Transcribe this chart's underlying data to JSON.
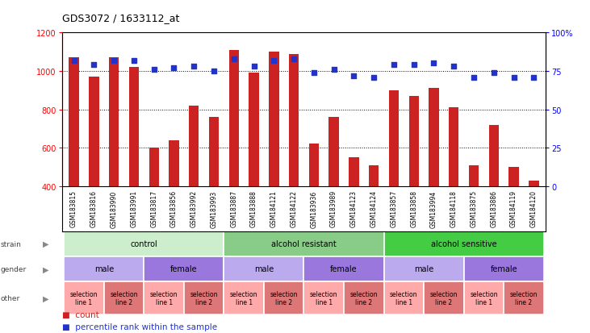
{
  "title": "GDS3072 / 1633112_at",
  "samples": [
    "GSM183815",
    "GSM183816",
    "GSM183990",
    "GSM183991",
    "GSM183817",
    "GSM183856",
    "GSM183992",
    "GSM183993",
    "GSM183887",
    "GSM183888",
    "GSM184121",
    "GSM184122",
    "GSM183936",
    "GSM183989",
    "GSM184123",
    "GSM184124",
    "GSM183857",
    "GSM183858",
    "GSM183994",
    "GSM184118",
    "GSM183875",
    "GSM183886",
    "GSM184119",
    "GSM184120"
  ],
  "counts": [
    1070,
    970,
    1070,
    1020,
    600,
    640,
    820,
    760,
    1110,
    990,
    1100,
    1090,
    620,
    760,
    550,
    510,
    900,
    870,
    910,
    810,
    510,
    720,
    500,
    430
  ],
  "percentiles": [
    82,
    79,
    82,
    82,
    76,
    77,
    78,
    75,
    83,
    78,
    82,
    83,
    74,
    76,
    72,
    71,
    79,
    79,
    80,
    78,
    71,
    74,
    71,
    71
  ],
  "bar_color": "#cc2222",
  "dot_color": "#2233cc",
  "ylim_left": [
    400,
    1200
  ],
  "ylim_right": [
    0,
    100
  ],
  "yticks_left": [
    400,
    600,
    800,
    1000,
    1200
  ],
  "yticks_right": [
    0,
    25,
    50,
    75,
    100
  ],
  "ytick_right_labels": [
    "0",
    "25",
    "50",
    "75",
    "100%"
  ],
  "grid_values": [
    600,
    800,
    1000
  ],
  "strain_groups": [
    {
      "label": "control",
      "start": 0,
      "end": 8,
      "color": "#cceecc"
    },
    {
      "label": "alcohol resistant",
      "start": 8,
      "end": 16,
      "color": "#88cc88"
    },
    {
      "label": "alcohol sensitive",
      "start": 16,
      "end": 24,
      "color": "#44cc44"
    }
  ],
  "gender_groups": [
    {
      "label": "male",
      "start": 0,
      "end": 4,
      "color": "#bbaaee"
    },
    {
      "label": "female",
      "start": 4,
      "end": 8,
      "color": "#9977dd"
    },
    {
      "label": "male",
      "start": 8,
      "end": 12,
      "color": "#bbaaee"
    },
    {
      "label": "female",
      "start": 12,
      "end": 16,
      "color": "#9977dd"
    },
    {
      "label": "male",
      "start": 16,
      "end": 20,
      "color": "#bbaaee"
    },
    {
      "label": "female",
      "start": 20,
      "end": 24,
      "color": "#9977dd"
    }
  ],
  "other_groups": [
    {
      "label": "selection\nline 1",
      "start": 0,
      "end": 2,
      "color": "#ffaaaa"
    },
    {
      "label": "selection\nline 2",
      "start": 2,
      "end": 4,
      "color": "#dd7777"
    },
    {
      "label": "selection\nline 1",
      "start": 4,
      "end": 6,
      "color": "#ffaaaa"
    },
    {
      "label": "selection\nline 2",
      "start": 6,
      "end": 8,
      "color": "#dd7777"
    },
    {
      "label": "selection\nline 1",
      "start": 8,
      "end": 10,
      "color": "#ffaaaa"
    },
    {
      "label": "selection\nline 2",
      "start": 10,
      "end": 12,
      "color": "#dd7777"
    },
    {
      "label": "selection\nline 1",
      "start": 12,
      "end": 14,
      "color": "#ffaaaa"
    },
    {
      "label": "selection\nline 2",
      "start": 14,
      "end": 16,
      "color": "#dd7777"
    },
    {
      "label": "selection\nline 1",
      "start": 16,
      "end": 18,
      "color": "#ffaaaa"
    },
    {
      "label": "selection\nline 2",
      "start": 18,
      "end": 20,
      "color": "#dd7777"
    },
    {
      "label": "selection\nline 1",
      "start": 20,
      "end": 22,
      "color": "#ffaaaa"
    },
    {
      "label": "selection\nline 2",
      "start": 22,
      "end": 24,
      "color": "#dd7777"
    }
  ],
  "row_labels": [
    "strain",
    "gender",
    "other"
  ],
  "legend_count_label": "count",
  "legend_pct_label": "percentile rank within the sample",
  "xtick_bg_color": "#d8d8d8",
  "fig_width": 7.31,
  "fig_height": 4.14,
  "dpi": 100
}
